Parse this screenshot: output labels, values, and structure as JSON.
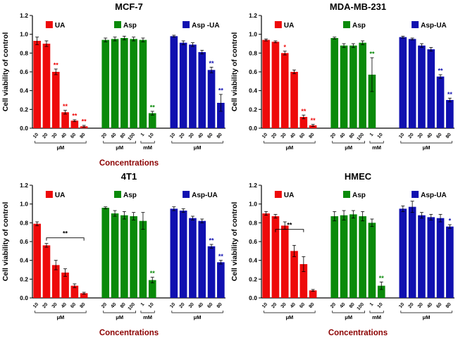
{
  "colors": {
    "ua": "#ee0a0a",
    "asp": "#0a8a0a",
    "asp_ua": "#1010b0",
    "xlabel": "#8b0000",
    "axis": "#000000",
    "background": "#ffffff"
  },
  "chart_data": [
    {
      "type": "bar",
      "title": "MCF-7",
      "ylabel": "Cell viability of control",
      "xlabel": "Concentrations",
      "ylim": [
        0,
        1.2
      ],
      "yticks": [
        0,
        0.2,
        0.4,
        0.6,
        0.8,
        1.0,
        1.2
      ],
      "grid": false,
      "legend_position": "top-inside",
      "groups": [
        {
          "name": "UA",
          "legend": "UA",
          "color": "#ee0a0a",
          "ticks": [
            "10",
            "20",
            "30",
            "40",
            "60",
            "80"
          ],
          "units": [
            {
              "label": "μM",
              "from": 0,
              "to": 5
            }
          ],
          "values": [
            0.93,
            0.9,
            0.6,
            0.17,
            0.08,
            0.02
          ],
          "errors": [
            0.04,
            0.03,
            0.03,
            0.02,
            0.01,
            0.01
          ],
          "sig": [
            "",
            "",
            "**",
            "**",
            "**",
            "**"
          ]
        },
        {
          "name": "Asp",
          "legend": "Asp",
          "color": "#0a8a0a",
          "ticks": [
            "20",
            "40",
            "80",
            "100",
            "1",
            "10"
          ],
          "units": [
            {
              "label": "μM",
              "from": 0,
              "to": 3
            },
            {
              "label": "mM",
              "from": 4,
              "to": 5
            }
          ],
          "values": [
            0.94,
            0.95,
            0.96,
            0.95,
            0.94,
            0.16
          ],
          "errors": [
            0.02,
            0.02,
            0.02,
            0.02,
            0.02,
            0.02
          ],
          "sig": [
            "",
            "",
            "",
            "",
            "",
            "**"
          ]
        },
        {
          "name": "Asp-UA",
          "legend": "Asp -UA",
          "color": "#1010b0",
          "ticks": [
            "10",
            "20",
            "30",
            "40",
            "60",
            "80"
          ],
          "units": [
            {
              "label": "μM",
              "from": 0,
              "to": 5
            }
          ],
          "values": [
            0.98,
            0.91,
            0.89,
            0.81,
            0.62,
            0.27
          ],
          "errors": [
            0.01,
            0.02,
            0.02,
            0.02,
            0.03,
            0.09
          ],
          "sig": [
            "",
            "",
            "",
            "",
            "**",
            "**"
          ]
        }
      ]
    },
    {
      "type": "bar",
      "title": "MDA-MB-231",
      "ylabel": "Cell viability of control",
      "xlabel": "",
      "ylim": [
        0,
        1.2
      ],
      "yticks": [
        0,
        0.2,
        0.4,
        0.6,
        0.8,
        1.0,
        1.2
      ],
      "grid": false,
      "legend_position": "top-inside",
      "groups": [
        {
          "name": "UA",
          "legend": "UA",
          "color": "#ee0a0a",
          "ticks": [
            "10",
            "20",
            "30",
            "40",
            "60",
            "80"
          ],
          "units": [
            {
              "label": "μM",
              "from": 0,
              "to": 5
            }
          ],
          "values": [
            0.94,
            0.92,
            0.8,
            0.6,
            0.12,
            0.03
          ],
          "errors": [
            0.01,
            0.01,
            0.02,
            0.02,
            0.02,
            0.01
          ],
          "sig": [
            "",
            "",
            "*",
            "",
            "**",
            "**"
          ]
        },
        {
          "name": "Asp",
          "legend": "Asp",
          "color": "#0a8a0a",
          "ticks": [
            "20",
            "40",
            "80",
            "100",
            "1",
            "10"
          ],
          "units": [
            {
              "label": "μM",
              "from": 0,
              "to": 3
            },
            {
              "label": "mM",
              "from": 4,
              "to": 5
            }
          ],
          "values": [
            0.96,
            0.88,
            0.88,
            0.91,
            0.57,
            0
          ],
          "errors": [
            0.01,
            0.02,
            0.02,
            0.02,
            0.18,
            0
          ],
          "sig": [
            "",
            "",
            "",
            "",
            "**",
            ""
          ]
        },
        {
          "name": "Asp-UA",
          "legend": "Asp-UA",
          "color": "#1010b0",
          "ticks": [
            "10",
            "20",
            "30",
            "40",
            "60",
            "80"
          ],
          "units": [
            {
              "label": "μM",
              "from": 0,
              "to": 5
            }
          ],
          "values": [
            0.97,
            0.95,
            0.88,
            0.84,
            0.55,
            0.3
          ],
          "errors": [
            0.01,
            0.01,
            0.02,
            0.02,
            0.02,
            0.02
          ],
          "sig": [
            "",
            "",
            "",
            "",
            "**",
            "**"
          ]
        }
      ]
    },
    {
      "type": "bar",
      "title": "4T1",
      "ylabel": "Cell viability of control",
      "xlabel": "Concentrations",
      "ylim": [
        0,
        1.2
      ],
      "yticks": [
        0,
        0.2,
        0.4,
        0.6,
        0.8,
        1.0,
        1.2
      ],
      "grid": false,
      "legend_position": "top-inside",
      "groups": [
        {
          "name": "UA",
          "legend": "UA",
          "color": "#ee0a0a",
          "ticks": [
            "10",
            "20",
            "30",
            "40",
            "60",
            "80"
          ],
          "units": [
            {
              "label": "μM",
              "from": 0,
              "to": 5
            }
          ],
          "values": [
            0.79,
            0.56,
            0.35,
            0.27,
            0.13,
            0.05
          ],
          "errors": [
            0.02,
            0.02,
            0.05,
            0.04,
            0.02,
            0.01
          ],
          "sig": [
            "",
            "",
            "",
            "",
            "",
            ""
          ],
          "bracket": {
            "from": 1,
            "to": 5,
            "y": 0.64,
            "label": "**"
          }
        },
        {
          "name": "Asp",
          "legend": "Asp",
          "color": "#0a8a0a",
          "ticks": [
            "20",
            "40",
            "80",
            "100",
            "1",
            "10"
          ],
          "units": [
            {
              "label": "μM",
              "from": 0,
              "to": 3
            },
            {
              "label": "mM",
              "from": 4,
              "to": 5
            }
          ],
          "values": [
            0.96,
            0.9,
            0.88,
            0.87,
            0.82,
            0.19
          ],
          "errors": [
            0.01,
            0.03,
            0.04,
            0.04,
            0.09,
            0.03
          ],
          "sig": [
            "",
            "",
            "",
            "",
            "",
            "**"
          ]
        },
        {
          "name": "Asp-UA",
          "legend": "Asp-UA",
          "color": "#1010b0",
          "ticks": [
            "10",
            "20",
            "30",
            "40",
            "60",
            "80"
          ],
          "units": [
            {
              "label": "μM",
              "from": 0,
              "to": 5
            }
          ],
          "values": [
            0.95,
            0.93,
            0.85,
            0.82,
            0.55,
            0.38
          ],
          "errors": [
            0.02,
            0.02,
            0.02,
            0.02,
            0.02,
            0.02
          ],
          "sig": [
            "",
            "",
            "",
            "",
            "**",
            "**"
          ]
        }
      ]
    },
    {
      "type": "bar",
      "title": "HMEC",
      "ylabel": "Cell viability of control",
      "xlabel": "Concentrations",
      "ylim": [
        0,
        1.2
      ],
      "yticks": [
        0,
        0.2,
        0.4,
        0.6,
        0.8,
        1.0,
        1.2
      ],
      "grid": false,
      "legend_position": "top-inside",
      "groups": [
        {
          "name": "UA",
          "legend": "UA",
          "color": "#ee0a0a",
          "ticks": [
            "10",
            "20",
            "30",
            "40",
            "60",
            "80"
          ],
          "units": [
            {
              "label": "μM",
              "from": 0,
              "to": 5
            }
          ],
          "values": [
            0.9,
            0.87,
            0.77,
            0.5,
            0.36,
            0.08
          ],
          "errors": [
            0.02,
            0.02,
            0.04,
            0.06,
            0.08,
            0.01
          ],
          "sig": [
            "",
            "",
            "",
            "",
            "",
            ""
          ],
          "bracket": {
            "from": 1,
            "to": 4,
            "y": 0.73,
            "label": "**"
          }
        },
        {
          "name": "Asp",
          "legend": "Asp",
          "color": "#0a8a0a",
          "ticks": [
            "20",
            "40",
            "80",
            "100",
            "1",
            "10"
          ],
          "units": [
            {
              "label": "μM",
              "from": 0,
              "to": 3
            },
            {
              "label": "mM",
              "from": 4,
              "to": 5
            }
          ],
          "values": [
            0.87,
            0.88,
            0.89,
            0.87,
            0.8,
            0.13
          ],
          "errors": [
            0.05,
            0.05,
            0.04,
            0.05,
            0.04,
            0.04
          ],
          "sig": [
            "",
            "",
            "",
            "",
            "",
            "**"
          ]
        },
        {
          "name": "Asp-UA",
          "legend": "Asp-UA",
          "color": "#1010b0",
          "ticks": [
            "10",
            "20",
            "30",
            "40",
            "60",
            "80"
          ],
          "units": [
            {
              "label": "μM",
              "from": 0,
              "to": 5
            }
          ],
          "values": [
            0.95,
            0.97,
            0.88,
            0.86,
            0.85,
            0.76
          ],
          "errors": [
            0.03,
            0.06,
            0.03,
            0.03,
            0.04,
            0.02
          ],
          "sig": [
            "",
            "",
            "",
            "",
            "",
            "*"
          ]
        }
      ]
    }
  ]
}
